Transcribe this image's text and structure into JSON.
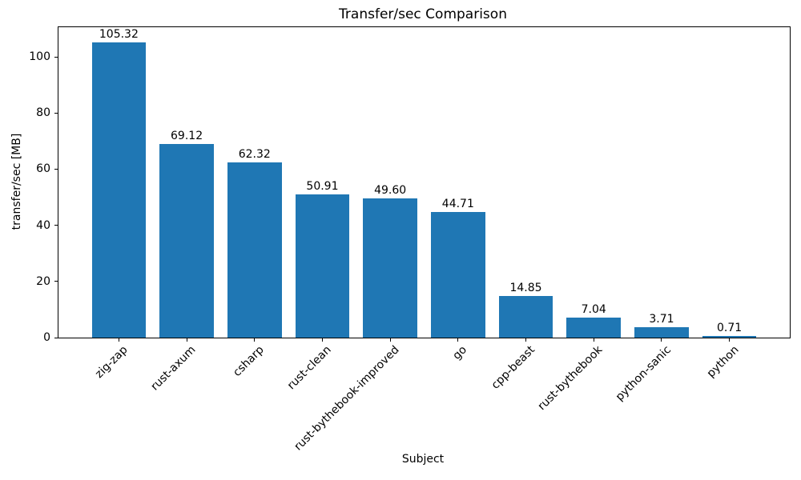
{
  "chart_data": {
    "type": "bar",
    "title": "Transfer/sec Comparison",
    "xlabel": "Subject",
    "ylabel": "transfer/sec [MB]",
    "categories": [
      "zig-zap",
      "rust-axum",
      "csharp",
      "rust-clean",
      "rust-bythebook-improved",
      "go",
      "cpp-beast",
      "rust-bythebook",
      "python-sanic",
      "python"
    ],
    "values": [
      105.32,
      69.12,
      62.32,
      50.91,
      49.6,
      44.71,
      14.85,
      7.04,
      3.71,
      0.71
    ],
    "value_labels": [
      "105.32",
      "69.12",
      "62.32",
      "50.91",
      "49.60",
      "44.71",
      "14.85",
      "7.04",
      "3.71",
      "0.71"
    ],
    "yticks": [
      0,
      20,
      40,
      60,
      80,
      100
    ],
    "ylim": [
      0,
      110.59
    ],
    "bar_color": "#1f77b4",
    "text_color": "#000000",
    "grid": false,
    "legend": "none",
    "x_tick_rotation": 45
  }
}
